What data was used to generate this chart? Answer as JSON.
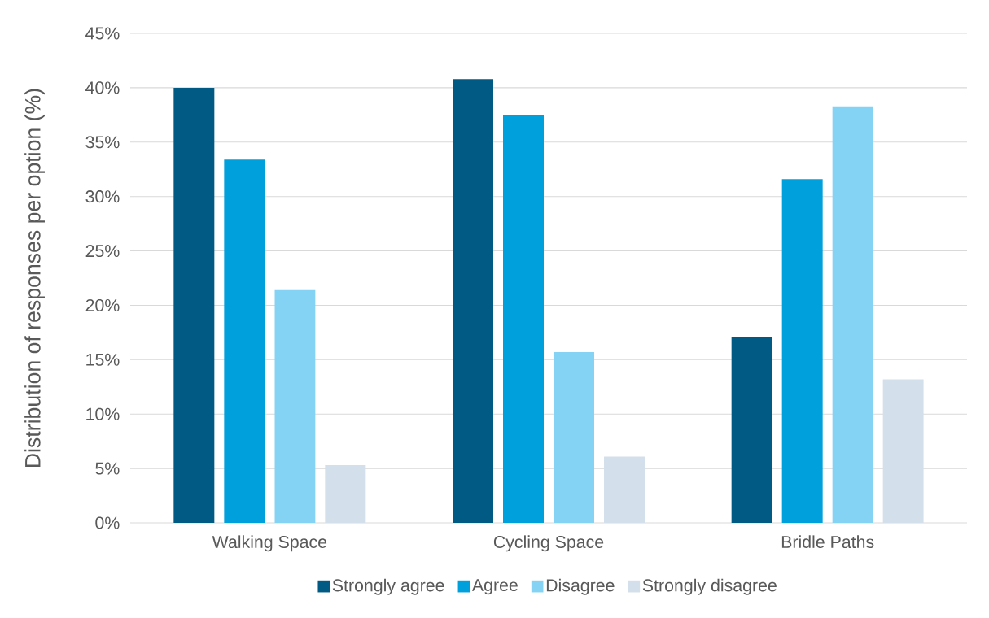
{
  "chart_data": {
    "type": "bar",
    "ylabel": "Distribution of responses per option (%)",
    "categories": [
      "Walking Space",
      "Cycling Space",
      "Bridle Paths"
    ],
    "series": [
      {
        "name": "Strongly agree",
        "color": "#005a84",
        "values": [
          40.0,
          40.8,
          17.1
        ]
      },
      {
        "name": "Agree",
        "color": "#00a0dc",
        "values": [
          33.4,
          37.5,
          31.6
        ]
      },
      {
        "name": "Disagree",
        "color": "#84d3f5",
        "values": [
          21.4,
          15.7,
          38.3
        ]
      },
      {
        "name": "Strongly disagree",
        "color": "#d3dfea",
        "values": [
          5.3,
          6.1,
          13.2
        ]
      }
    ],
    "ylim": [
      0,
      45
    ],
    "yticks": [
      {
        "value": 0,
        "label": "0%"
      },
      {
        "value": 5,
        "label": "5%"
      },
      {
        "value": 10,
        "label": "10%"
      },
      {
        "value": 15,
        "label": "15%"
      },
      {
        "value": 20,
        "label": "20%"
      },
      {
        "value": 25,
        "label": "25%"
      },
      {
        "value": 30,
        "label": "30%"
      },
      {
        "value": 35,
        "label": "35%"
      },
      {
        "value": 40,
        "label": "40%"
      },
      {
        "value": 45,
        "label": "45%"
      }
    ],
    "grid": "y",
    "legend": "bottom"
  }
}
